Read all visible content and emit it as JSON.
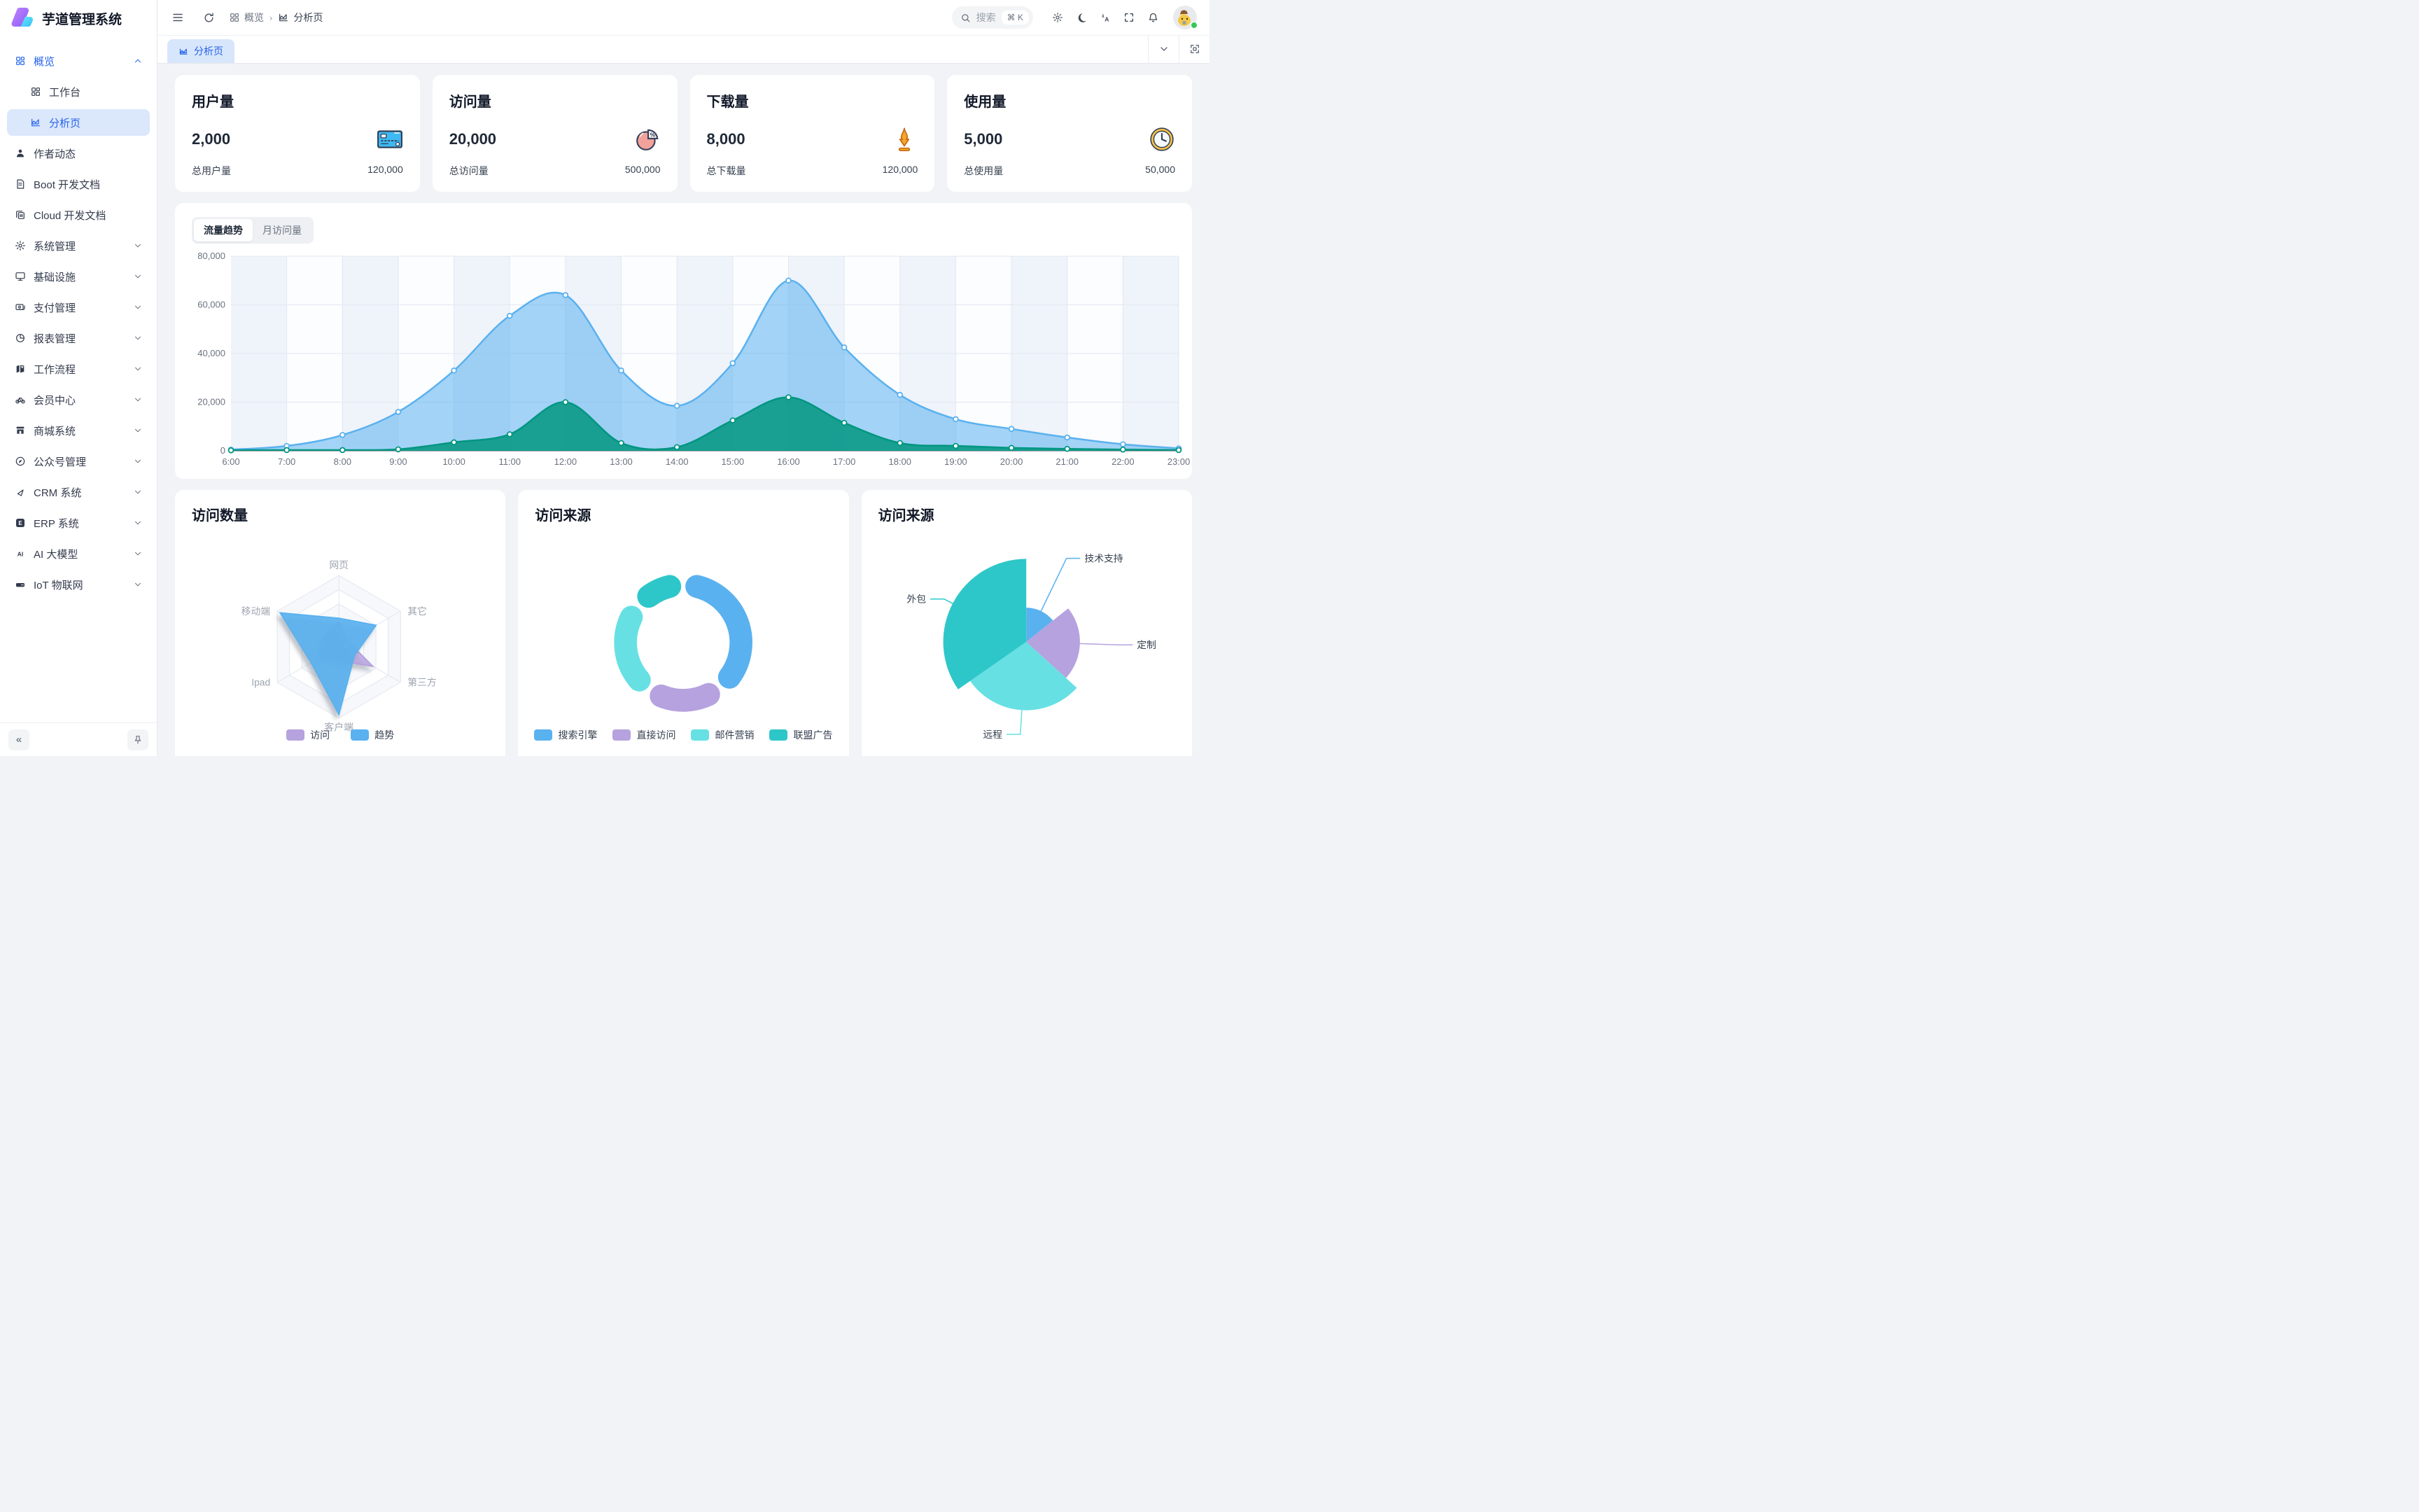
{
  "app": {
    "title": "芋道管理系统"
  },
  "sidebar": {
    "items": [
      {
        "label": "概览",
        "icon": "grid-icon",
        "chevron": "up",
        "group_active": true
      },
      {
        "label": "工作台",
        "icon": "grid-icon",
        "indent": true
      },
      {
        "label": "分析页",
        "icon": "chart-icon",
        "indent": true,
        "selected": true
      },
      {
        "label": "作者动态",
        "icon": "user-icon"
      },
      {
        "label": "Boot 开发文档",
        "icon": "document-icon"
      },
      {
        "label": "Cloud 开发文档",
        "icon": "copy-icon"
      },
      {
        "label": "系统管理",
        "icon": "gear-icon",
        "chevron": "down"
      },
      {
        "label": "基础设施",
        "icon": "monitor-icon",
        "chevron": "down"
      },
      {
        "label": "支付管理",
        "icon": "wallet-icon",
        "chevron": "down"
      },
      {
        "label": "报表管理",
        "icon": "pie-icon",
        "chevron": "down"
      },
      {
        "label": "工作流程",
        "icon": "flow-icon",
        "chevron": "down"
      },
      {
        "label": "会员中心",
        "icon": "bike-icon",
        "chevron": "down"
      },
      {
        "label": "商城系统",
        "icon": "shop-icon",
        "chevron": "down"
      },
      {
        "label": "公众号管理",
        "icon": "compass-icon",
        "chevron": "down"
      },
      {
        "label": "CRM 系统",
        "icon": "triangle-icon",
        "chevron": "down"
      },
      {
        "label": "ERP 系统",
        "icon": "erp-icon",
        "chevron": "down"
      },
      {
        "label": "AI 大模型",
        "icon": "ai-icon",
        "chevron": "down"
      },
      {
        "label": "IoT 物联网",
        "icon": "iot-icon",
        "chevron": "down"
      }
    ],
    "collapse_label": "«"
  },
  "header": {
    "breadcrumb": [
      {
        "label": "概览",
        "icon": "grid-icon"
      },
      {
        "label": "分析页",
        "icon": "chart-icon"
      }
    ],
    "search": {
      "placeholder": "搜索",
      "shortcut": "⌘ K"
    },
    "actions": [
      {
        "icon": "gear-icon"
      },
      {
        "icon": "moon-icon"
      },
      {
        "icon": "translate-icon"
      },
      {
        "icon": "fullscreen-icon"
      },
      {
        "icon": "bell-icon"
      }
    ]
  },
  "tabbar": {
    "active_tab": "分析页"
  },
  "stats": [
    {
      "title": "用户量",
      "value": "2,000",
      "icon": "credit-card-icon",
      "footer_label": "总用户量",
      "footer_value": "120,000"
    },
    {
      "title": "访问量",
      "value": "20,000",
      "icon": "pie-percent-icon",
      "footer_label": "总访问量",
      "footer_value": "500,000"
    },
    {
      "title": "下载量",
      "value": "8,000",
      "icon": "download-icon",
      "footer_label": "总下载量",
      "footer_value": "120,000"
    },
    {
      "title": "使用量",
      "value": "5,000",
      "icon": "clock-icon",
      "footer_label": "总使用量",
      "footer_value": "50,000"
    }
  ],
  "trend": {
    "tabs": [
      "流量趋势",
      "月访问量"
    ],
    "active": "流量趋势"
  },
  "cards": {
    "radar_title": "访问数量",
    "donut_title": "访问来源",
    "rose_title": "访问来源"
  },
  "chart_data": [
    {
      "id": "traffic_trend",
      "type": "area",
      "title": "流量趋势",
      "x": [
        "6:00",
        "7:00",
        "8:00",
        "9:00",
        "10:00",
        "11:00",
        "12:00",
        "13:00",
        "14:00",
        "15:00",
        "16:00",
        "17:00",
        "18:00",
        "19:00",
        "20:00",
        "21:00",
        "22:00",
        "23:00"
      ],
      "ylim": [
        0,
        80000
      ],
      "ytick_labels": [
        "0",
        "20,000",
        "40,000",
        "60,000",
        "80,000"
      ],
      "grid": true,
      "series": [
        {
          "name": "blue",
          "color": "#5ab1ef",
          "fill_opacity": 0.55,
          "values": [
            500,
            2000,
            6500,
            16000,
            33000,
            55500,
            64000,
            33000,
            18500,
            36000,
            70000,
            42500,
            23000,
            13000,
            9000,
            5500,
            2700,
            1000
          ]
        },
        {
          "name": "teal",
          "color": "#019680",
          "fill_opacity": 0.85,
          "values": [
            200,
            300,
            300,
            600,
            3500,
            6800,
            20000,
            3200,
            1500,
            12500,
            22000,
            11500,
            3200,
            2000,
            1200,
            800,
            500,
            300
          ]
        }
      ]
    },
    {
      "id": "visits_radar",
      "type": "radar",
      "title": "访问数量",
      "indicators": [
        "网页",
        "其它",
        "第三方",
        "客户端",
        "Ipad",
        "移动端"
      ],
      "max": 100,
      "series": [
        {
          "name": "访问",
          "color": "#b6a2de",
          "values": [
            35,
            15,
            55,
            20,
            30,
            25
          ]
        },
        {
          "name": "趋势",
          "color": "#5ab1ef",
          "values": [
            40,
            60,
            25,
            95,
            45,
            95
          ]
        }
      ],
      "legend_position": "bottom"
    },
    {
      "id": "source_donut",
      "type": "pie",
      "title": "访问来源",
      "labels": [
        "搜索引擎",
        "直接访问",
        "邮件营销",
        "联盟广告"
      ],
      "values": [
        390,
        210,
        260,
        140
      ],
      "colors": [
        "#5ab1ef",
        "#b6a2de",
        "#67e0e3",
        "#2ec7c9"
      ],
      "donut": true,
      "legend_position": "bottom"
    },
    {
      "id": "source_rose",
      "type": "pie",
      "title": "访问来源",
      "labels": [
        "技术支持",
        "定制",
        "远程",
        "外包"
      ],
      "values": [
        35,
        55,
        70,
        85
      ],
      "colors": [
        "#5ab1ef",
        "#b6a2de",
        "#67e0e3",
        "#2ec7c9"
      ],
      "rose": true,
      "labels_outside": true
    }
  ]
}
